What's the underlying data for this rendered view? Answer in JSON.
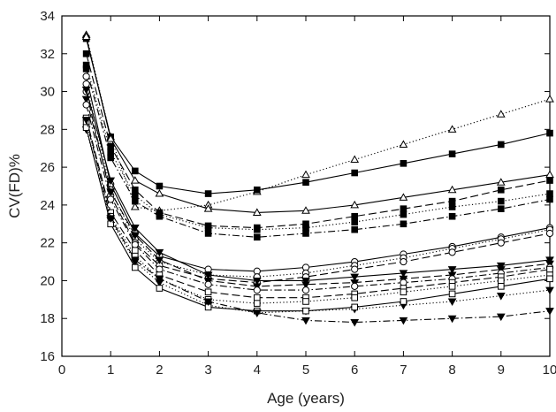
{
  "chart_data": {
    "type": "line",
    "title": "",
    "xlabel": "Age (years)",
    "ylabel": "CV(FD)%",
    "xlim": [
      0,
      10
    ],
    "ylim": [
      16,
      34
    ],
    "xticks": [
      0,
      1,
      2,
      3,
      4,
      5,
      6,
      7,
      8,
      9,
      10
    ],
    "yticks": [
      16,
      18,
      20,
      22,
      24,
      26,
      28,
      30,
      32,
      34
    ],
    "grid": false,
    "legend": "none",
    "series": [
      {
        "marker": "triangle-open",
        "dash": "dotted",
        "color": "#000000",
        "x": [
          0.5,
          1,
          1.5,
          2,
          3,
          4,
          5,
          6,
          7,
          8,
          9,
          10
        ],
        "y": [
          33.0,
          27.6,
          23.9,
          23.7,
          24.0,
          24.7,
          25.6,
          26.4,
          27.2,
          28.0,
          28.8,
          29.6
        ]
      },
      {
        "marker": "square-filled",
        "dash": "solid",
        "color": "#000000",
        "x": [
          0.5,
          1,
          1.5,
          2,
          3,
          4,
          5,
          6,
          7,
          8,
          9,
          10
        ],
        "y": [
          32.8,
          27.6,
          25.8,
          25.0,
          24.6,
          24.8,
          25.2,
          25.7,
          26.2,
          26.7,
          27.2,
          27.8
        ]
      },
      {
        "marker": "triangle-open",
        "dash": "solid",
        "color": "#000000",
        "x": [
          0.5,
          1,
          1.5,
          2,
          3,
          4,
          5,
          6,
          7,
          8,
          9,
          10
        ],
        "y": [
          32.9,
          27.5,
          25.3,
          24.6,
          23.8,
          23.6,
          23.7,
          24.0,
          24.4,
          24.8,
          25.2,
          25.6
        ]
      },
      {
        "marker": "square-filled",
        "dash": "long-dash",
        "color": "#000000",
        "x": [
          0.5,
          1,
          1.5,
          2,
          3,
          4,
          5,
          6,
          7,
          8,
          9,
          10
        ],
        "y": [
          32.0,
          27.1,
          24.8,
          23.6,
          22.9,
          22.8,
          23.0,
          23.4,
          23.8,
          24.2,
          24.8,
          25.3
        ]
      },
      {
        "marker": "square-filled",
        "dash": "dotted",
        "color": "#000000",
        "x": [
          0.5,
          1,
          1.5,
          2,
          3,
          4,
          5,
          6,
          7,
          8,
          9,
          10
        ],
        "y": [
          31.4,
          26.8,
          24.5,
          23.5,
          22.8,
          22.7,
          22.8,
          23.1,
          23.5,
          23.9,
          24.2,
          24.6
        ]
      },
      {
        "marker": "square-filled",
        "dash": "dash-dot",
        "color": "#000000",
        "x": [
          0.5,
          1,
          1.5,
          2,
          3,
          4,
          5,
          6,
          7,
          8,
          9,
          10
        ],
        "y": [
          31.2,
          26.5,
          24.2,
          23.4,
          22.5,
          22.3,
          22.5,
          22.7,
          23.0,
          23.4,
          23.8,
          24.3
        ]
      },
      {
        "marker": "circle-open",
        "dash": "solid",
        "color": "#000000",
        "x": [
          0.5,
          1,
          1.5,
          2,
          3,
          4,
          5,
          6,
          7,
          8,
          9,
          10
        ],
        "y": [
          30.8,
          25.1,
          22.5,
          21.3,
          20.6,
          20.5,
          20.7,
          21.0,
          21.4,
          21.8,
          22.3,
          22.8
        ]
      },
      {
        "marker": "circle-open",
        "dash": "dotted",
        "color": "#000000",
        "x": [
          0.5,
          1,
          1.5,
          2,
          3,
          4,
          5,
          6,
          7,
          8,
          9,
          10
        ],
        "y": [
          30.4,
          24.8,
          22.2,
          21.0,
          20.3,
          20.2,
          20.4,
          20.8,
          21.2,
          21.7,
          22.2,
          22.7
        ]
      },
      {
        "marker": "circle-open",
        "dash": "long-dash",
        "color": "#000000",
        "x": [
          0.5,
          1,
          1.5,
          2,
          3,
          4,
          5,
          6,
          7,
          8,
          9,
          10
        ],
        "y": [
          30.0,
          24.5,
          22.0,
          20.8,
          20.1,
          19.9,
          20.2,
          20.6,
          21.0,
          21.5,
          22.0,
          22.5
        ]
      },
      {
        "marker": "triangle-down-filled",
        "dash": "solid",
        "color": "#000000",
        "x": [
          0.5,
          1,
          1.5,
          2,
          3,
          4,
          5,
          6,
          7,
          8,
          9,
          10
        ],
        "y": [
          30.1,
          25.3,
          22.8,
          21.5,
          20.3,
          20.0,
          20.0,
          20.2,
          20.4,
          20.6,
          20.8,
          21.1
        ]
      },
      {
        "marker": "triangle-down-filled",
        "dash": "long-dash",
        "color": "#000000",
        "x": [
          0.5,
          1,
          1.5,
          2,
          3,
          4,
          5,
          6,
          7,
          8,
          9,
          10
        ],
        "y": [
          29.6,
          24.7,
          22.4,
          21.1,
          20.0,
          19.7,
          19.8,
          19.9,
          20.1,
          20.3,
          20.6,
          20.9
        ]
      },
      {
        "marker": "circle-open",
        "dash": "dash-dot",
        "color": "#000000",
        "x": [
          0.5,
          1,
          1.5,
          2,
          3,
          4,
          5,
          6,
          7,
          8,
          9,
          10
        ],
        "y": [
          29.3,
          24.3,
          21.9,
          20.6,
          19.8,
          19.5,
          19.5,
          19.7,
          19.9,
          20.1,
          20.4,
          20.7
        ]
      },
      {
        "marker": "square-open",
        "dash": "long-dash",
        "color": "#000000",
        "x": [
          0.5,
          1,
          1.5,
          2,
          3,
          4,
          5,
          6,
          7,
          8,
          9,
          10
        ],
        "y": [
          28.6,
          23.6,
          21.6,
          20.3,
          19.4,
          19.1,
          19.1,
          19.3,
          19.6,
          19.9,
          20.2,
          20.6
        ]
      },
      {
        "marker": "square-open",
        "dash": "dotted",
        "color": "#000000",
        "x": [
          0.5,
          1,
          1.5,
          2,
          3,
          4,
          5,
          6,
          7,
          8,
          9,
          10
        ],
        "y": [
          28.4,
          23.4,
          21.3,
          20.1,
          19.0,
          18.8,
          18.9,
          19.1,
          19.4,
          19.7,
          20.0,
          20.3
        ]
      },
      {
        "marker": "triangle-down-filled",
        "dash": "dotted",
        "color": "#000000",
        "x": [
          0.5,
          1,
          1.5,
          2,
          3,
          4,
          5,
          6,
          7,
          8,
          9,
          10
        ],
        "y": [
          28.0,
          23.2,
          21.0,
          19.9,
          18.7,
          18.3,
          18.4,
          18.5,
          18.7,
          18.9,
          19.2,
          19.5
        ]
      },
      {
        "marker": "square-open",
        "dash": "solid",
        "color": "#000000",
        "x": [
          0.5,
          1,
          1.5,
          2,
          3,
          4,
          5,
          6,
          7,
          8,
          9,
          10
        ],
        "y": [
          28.1,
          23.0,
          20.7,
          19.6,
          18.6,
          18.4,
          18.4,
          18.6,
          18.9,
          19.3,
          19.7,
          20.1
        ]
      },
      {
        "marker": "triangle-down-filled",
        "dash": "dash-dot",
        "color": "#000000",
        "x": [
          0.5,
          1,
          1.5,
          2,
          3,
          4,
          5,
          6,
          7,
          8,
          9,
          10
        ],
        "y": [
          28.5,
          23.3,
          21.1,
          20.1,
          18.9,
          18.3,
          17.9,
          17.8,
          17.9,
          18.0,
          18.1,
          18.4
        ]
      }
    ]
  }
}
